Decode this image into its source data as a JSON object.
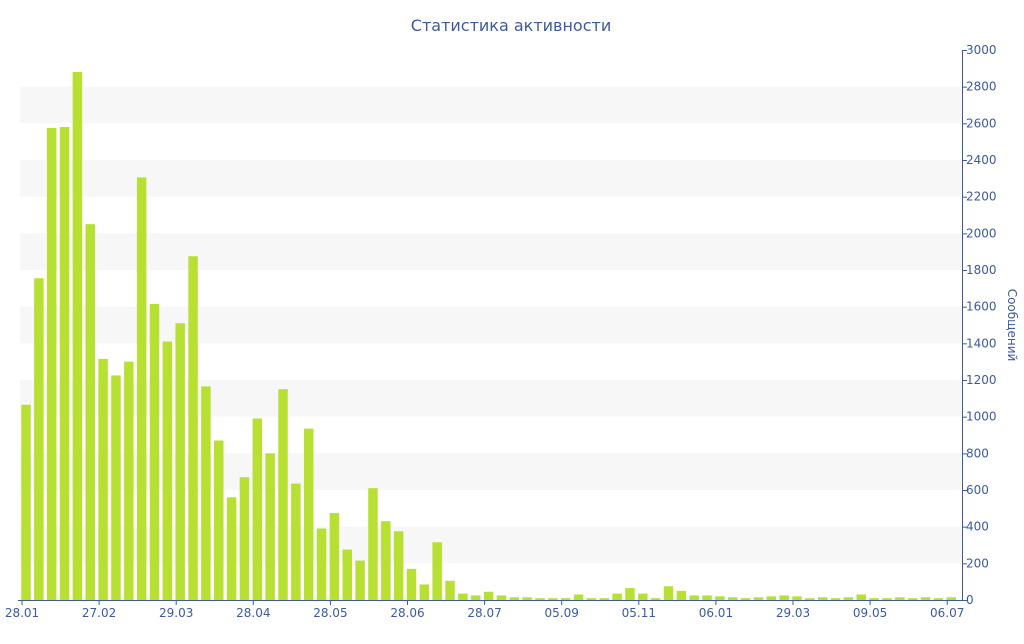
{
  "chart_data": {
    "type": "bar",
    "title": "Статистика активности",
    "xlabel": "",
    "ylabel": "Сообщений",
    "ylim": [
      0,
      3000
    ],
    "y_ticks": [
      0,
      200,
      400,
      600,
      800,
      1000,
      1200,
      1400,
      1600,
      1800,
      2000,
      2200,
      2400,
      2600,
      2800,
      3000
    ],
    "x_ticks": [
      {
        "label": "28.01",
        "index": 0
      },
      {
        "label": "27.02",
        "index": 6
      },
      {
        "label": "29.03",
        "index": 12
      },
      {
        "label": "28.04",
        "index": 18
      },
      {
        "label": "28.05",
        "index": 24
      },
      {
        "label": "28.06",
        "index": 30
      },
      {
        "label": "28.07",
        "index": 36
      },
      {
        "label": "05.09",
        "index": 42
      },
      {
        "label": "05.11",
        "index": 48
      },
      {
        "label": "06.01",
        "index": 54
      },
      {
        "label": "29.03",
        "index": 60
      },
      {
        "label": "09.05",
        "index": 66
      },
      {
        "label": "06.07",
        "index": 72
      }
    ],
    "y_axis_position": "right",
    "grid": "horizontal bands",
    "bar_color": "#b8e033",
    "band_color": "#f7f7f7",
    "text_color": "#3d5a9e",
    "values": [
      1065,
      1755,
      2575,
      2580,
      2880,
      2050,
      1315,
      1225,
      1300,
      2305,
      1615,
      1410,
      1510,
      1875,
      1165,
      870,
      560,
      670,
      990,
      800,
      1150,
      635,
      935,
      390,
      475,
      275,
      215,
      610,
      430,
      375,
      170,
      85,
      315,
      105,
      35,
      25,
      45,
      25,
      15,
      15,
      10,
      10,
      10,
      30,
      10,
      10,
      35,
      65,
      35,
      10,
      75,
      50,
      25,
      25,
      20,
      15,
      10,
      15,
      20,
      25,
      20,
      10,
      15,
      10,
      15,
      30,
      10,
      10,
      15,
      10,
      15,
      10,
      15
    ]
  }
}
